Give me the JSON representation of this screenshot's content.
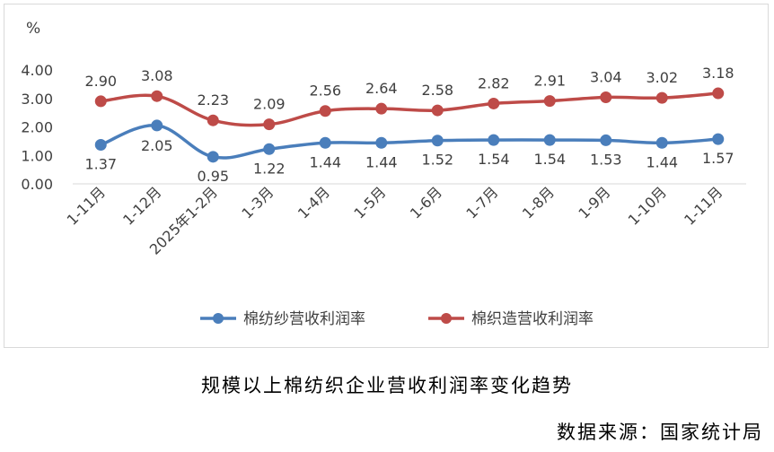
{
  "chart_data": {
    "type": "line",
    "unit_label": "%",
    "categories": [
      "1-11月",
      "1-12月",
      "2025年1-2月",
      "1-3月",
      "1-4月",
      "1-5月",
      "1-6月",
      "1-7月",
      "1-8月",
      "1-9月",
      "1-10月",
      "1-11月"
    ],
    "ylim": [
      0,
      4
    ],
    "yticks": [
      "0.00",
      "1.00",
      "2.00",
      "3.00",
      "4.00"
    ],
    "grid": false,
    "legend_position": "bottom",
    "series": [
      {
        "name": "棉纺纱营收利润率",
        "color": "#4a7ebb",
        "values": [
          1.37,
          2.05,
          0.95,
          1.22,
          1.44,
          1.44,
          1.52,
          1.54,
          1.54,
          1.53,
          1.44,
          1.57
        ],
        "labels": [
          "1.37",
          "2.05",
          "0.95",
          "1.22",
          "1.44",
          "1.44",
          "1.52",
          "1.54",
          "1.54",
          "1.53",
          "1.44",
          "1.57"
        ]
      },
      {
        "name": "棉织造营收利润率",
        "color": "#be4b48",
        "values": [
          2.9,
          3.08,
          2.23,
          2.09,
          2.56,
          2.64,
          2.58,
          2.82,
          2.91,
          3.04,
          3.02,
          3.18
        ],
        "labels": [
          "2.90",
          "3.08",
          "2.23",
          "2.09",
          "2.56",
          "2.64",
          "2.58",
          "2.82",
          "2.91",
          "3.04",
          "3.02",
          "3.18"
        ]
      }
    ]
  },
  "caption": "规模以上棉纺织企业营收利润率变化趋势",
  "source": "数据来源：国家统计局"
}
